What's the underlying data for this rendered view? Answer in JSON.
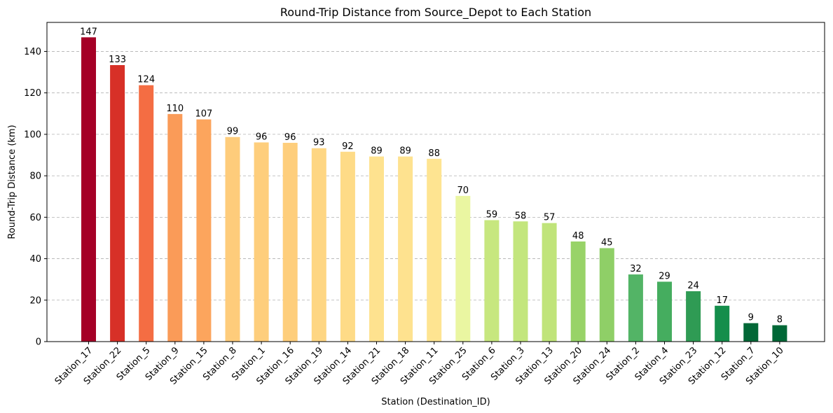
{
  "chart_data": {
    "type": "bar",
    "title": "Round-Trip Distance from Source_Depot to Each Station",
    "xlabel": "Station (Destination_ID)",
    "ylabel": "Round-Trip Distance (km)",
    "ylim": [
      0,
      154
    ],
    "yticks": [
      0,
      20,
      40,
      60,
      80,
      100,
      120,
      140
    ],
    "grid": "horizontal dashed",
    "categories": [
      "Station_17",
      "Station_22",
      "Station_5",
      "Station_9",
      "Station_15",
      "Station_8",
      "Station_1",
      "Station_16",
      "Station_19",
      "Station_14",
      "Station_21",
      "Station_18",
      "Station_11",
      "Station_25",
      "Station_6",
      "Station_3",
      "Station_13",
      "Station_20",
      "Station_24",
      "Station_2",
      "Station_4",
      "Station_23",
      "Station_12",
      "Station_7",
      "Station_10"
    ],
    "values": [
      146.8,
      133.4,
      123.7,
      109.8,
      107.2,
      98.7,
      96.1,
      95.9,
      93.3,
      91.6,
      89.3,
      89.3,
      88.2,
      70.3,
      58.6,
      58.0,
      57.2,
      48.3,
      45.1,
      32.4,
      28.9,
      24.3,
      17.3,
      8.9,
      7.9
    ],
    "value_labels": [
      "147",
      "133",
      "124",
      "110",
      "107",
      "99",
      "96",
      "96",
      "93",
      "92",
      "89",
      "89",
      "88",
      "70",
      "59",
      "58",
      "57",
      "48",
      "45",
      "32",
      "29",
      "24",
      "17",
      "9",
      "8"
    ],
    "colors": [
      "#a50026",
      "#d73027",
      "#f46d43",
      "#fa9b58",
      "#fca55d",
      "#fecc7b",
      "#fece7c",
      "#fece7c",
      "#fed683",
      "#fedb87",
      "#fee28f",
      "#fee28f",
      "#fee491",
      "#eaf6a1",
      "#c7e77f",
      "#c3e67d",
      "#c0e47a",
      "#98d368",
      "#8fcf67",
      "#53b466",
      "#45ad5f",
      "#2f9b54",
      "#148e4b",
      "#026837",
      "#006837"
    ]
  }
}
